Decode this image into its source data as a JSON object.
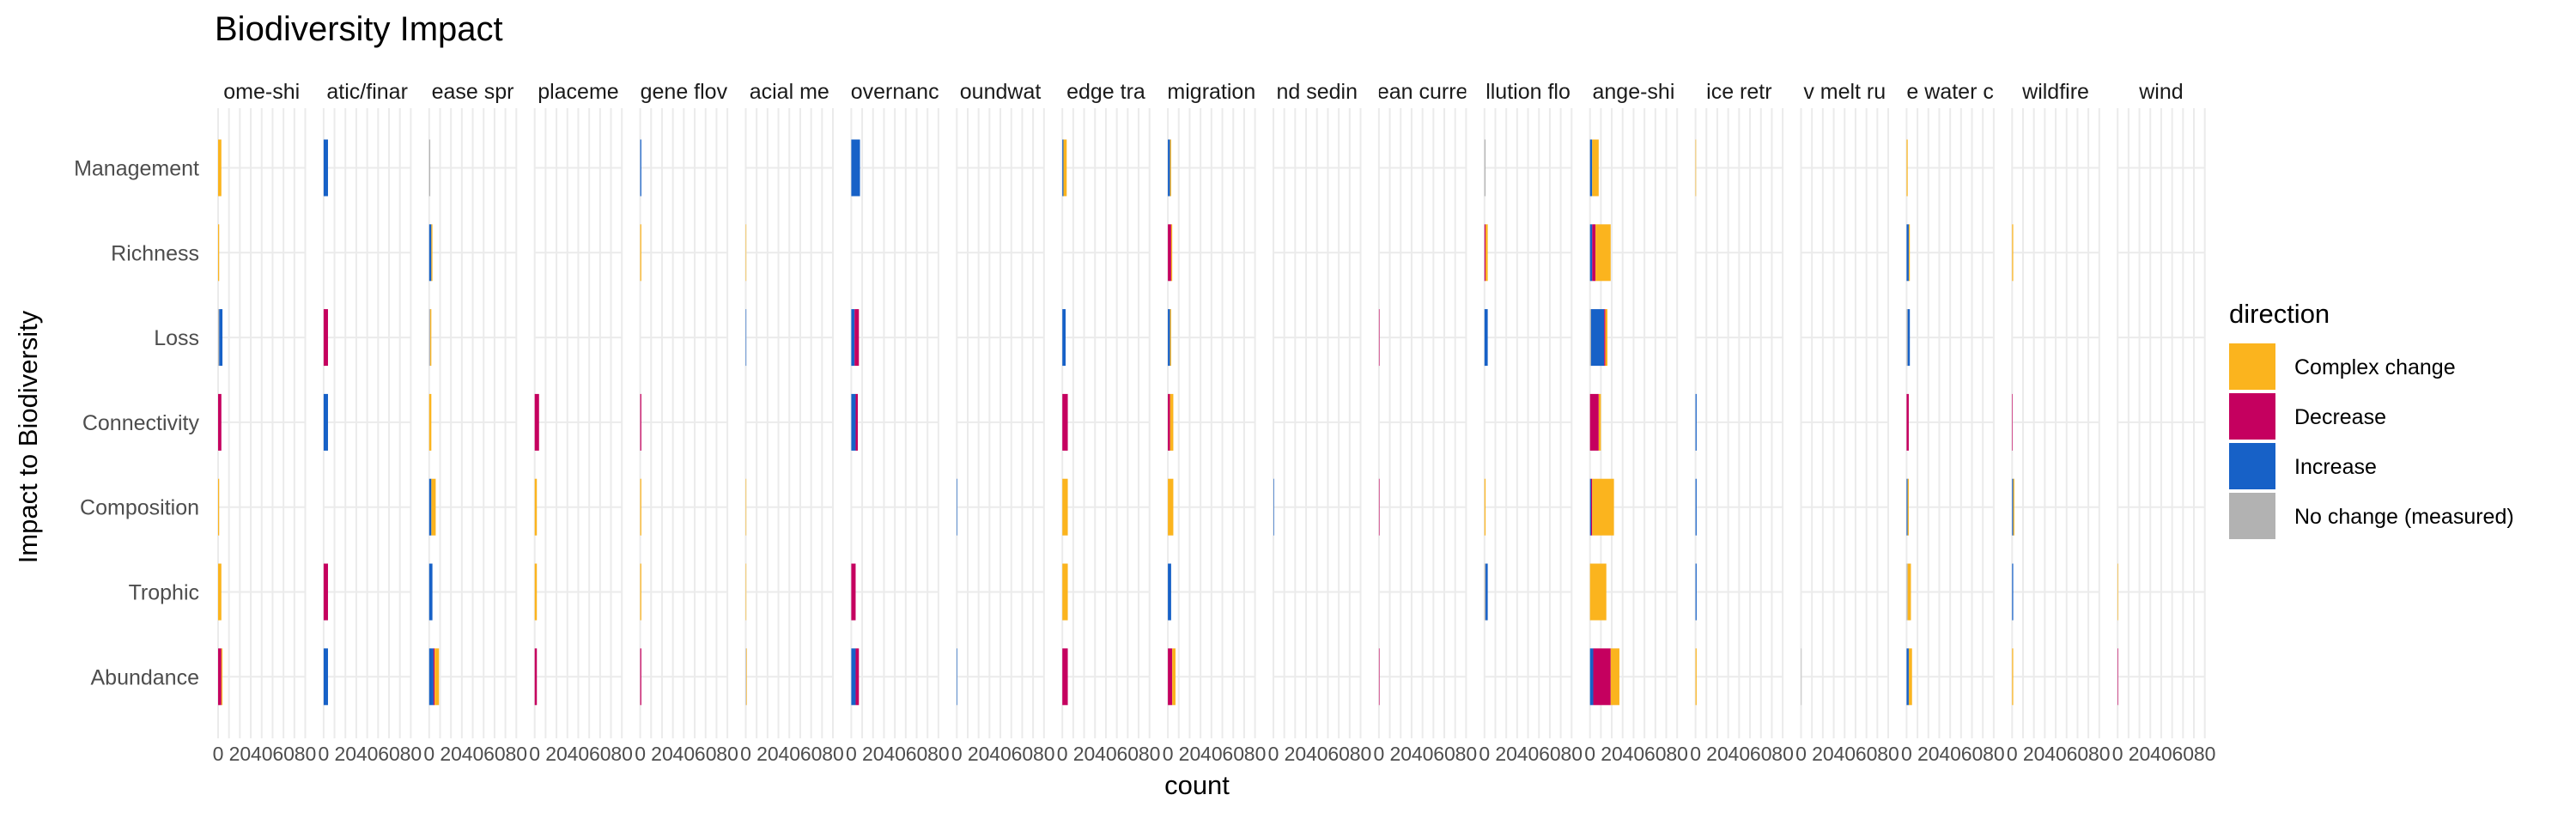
{
  "chart_data": {
    "type": "bar",
    "orientation": "horizontal",
    "stacked": true,
    "title": "Biodiversity Impact",
    "xlabel": "count",
    "ylabel": "Impact to Biodiversity",
    "xlim": [
      0,
      80
    ],
    "x_ticks": [
      0,
      20,
      40,
      60,
      80
    ],
    "x_tick_labels": [
      "0",
      "20",
      "40",
      "60",
      "80"
    ],
    "categories": [
      "Management",
      "Richness",
      "Loss",
      "Connectivity",
      "Composition",
      "Trophic",
      "Abundance"
    ],
    "legend": {
      "title": "direction",
      "position": "right",
      "entries": [
        {
          "label": "Complex change",
          "color": "#FBB41E"
        },
        {
          "label": "Decrease",
          "color": "#C5005F"
        },
        {
          "label": "Increase",
          "color": "#1761C7"
        },
        {
          "label": "No change (measured)",
          "color": "#B2B2B2"
        }
      ]
    },
    "stack_order": [
      "No change (measured)",
      "Increase",
      "Decrease",
      "Complex change"
    ],
    "panels": [
      {
        "label": "ome-shi",
        "values": {
          "Management": {
            "Complex change": 3
          },
          "Richness": {
            "Complex change": 1
          },
          "Loss": {
            "Increase": 3,
            "No change (measured)": 1
          },
          "Connectivity": {
            "Decrease": 3
          },
          "Composition": {
            "Complex change": 1
          },
          "Trophic": {
            "Complex change": 3
          },
          "Abundance": {
            "Decrease": 3,
            "Complex change": 1
          }
        }
      },
      {
        "label": "atic/finar",
        "values": {
          "Management": {
            "Increase": 4
          },
          "Loss": {
            "Decrease": 4
          },
          "Connectivity": {
            "Increase": 4
          },
          "Trophic": {
            "Decrease": 4
          },
          "Abundance": {
            "Increase": 4
          }
        }
      },
      {
        "label": "ease spr",
        "values": {
          "Management": {
            "No change (measured)": 1
          },
          "Richness": {
            "Increase": 2,
            "Complex change": 1
          },
          "Loss": {
            "No change (measured)": 1,
            "Complex change": 1
          },
          "Connectivity": {
            "Complex change": 2
          },
          "Composition": {
            "Increase": 2,
            "Complex change": 4
          },
          "Trophic": {
            "Increase": 3
          },
          "Abundance": {
            "Increase": 4,
            "Decrease": 1,
            "Complex change": 4
          }
        }
      },
      {
        "label": "placeme",
        "values": {
          "Connectivity": {
            "Decrease": 4
          },
          "Composition": {
            "Complex change": 2
          },
          "Trophic": {
            "Complex change": 2
          },
          "Abundance": {
            "Decrease": 2
          }
        }
      },
      {
        "label": "gene flov",
        "values": {
          "Management": {
            "Increase": 1
          },
          "Richness": {
            "Complex change": 1
          },
          "Connectivity": {
            "Decrease": 1
          },
          "Composition": {
            "Complex change": 1
          },
          "Trophic": {
            "Complex change": 1
          },
          "Abundance": {
            "Decrease": 1
          }
        }
      },
      {
        "label": "acial me",
        "values": {
          "Richness": {
            "Complex change": 0.5
          },
          "Loss": {
            "Increase": 0.5
          },
          "Composition": {
            "Complex change": 0.5
          },
          "Trophic": {
            "Complex change": 0.5
          },
          "Abundance": {
            "No change (measured)": 0.5,
            "Complex change": 0.5
          }
        }
      },
      {
        "label": "overnanc",
        "values": {
          "Management": {
            "Increase": 8
          },
          "Loss": {
            "Increase": 3,
            "Decrease": 4
          },
          "Connectivity": {
            "Increase": 4,
            "Decrease": 2
          },
          "Trophic": {
            "Decrease": 4
          },
          "Abundance": {
            "Increase": 4,
            "Decrease": 3
          }
        }
      },
      {
        "label": "oundwat",
        "values": {
          "Composition": {
            "Increase": 0.5
          },
          "Abundance": {
            "Increase": 0.5
          }
        }
      },
      {
        "label": "edge tra",
        "values": {
          "Management": {
            "Increase": 1,
            "Complex change": 3
          },
          "Loss": {
            "Increase": 3
          },
          "Connectivity": {
            "Decrease": 5
          },
          "Composition": {
            "Complex change": 5
          },
          "Trophic": {
            "Complex change": 5
          },
          "Abundance": {
            "Decrease": 5
          }
        }
      },
      {
        "label": "migration",
        "values": {
          "Management": {
            "Increase": 2,
            "Complex change": 1
          },
          "Richness": {
            "Decrease": 3,
            "Complex change": 1
          },
          "Loss": {
            "Increase": 2,
            "Complex change": 1
          },
          "Connectivity": {
            "Decrease": 2,
            "Complex change": 3
          },
          "Composition": {
            "Complex change": 5
          },
          "Trophic": {
            "Increase": 3
          },
          "Abundance": {
            "Decrease": 4,
            "Complex change": 3
          }
        }
      },
      {
        "label": "nd sedin",
        "values": {
          "Composition": {
            "Increase": 0.5
          }
        }
      },
      {
        "label": "ean curre",
        "values": {
          "Loss": {
            "Decrease": 0.5
          },
          "Composition": {
            "Decrease": 0.5
          },
          "Abundance": {
            "Decrease": 0.5
          }
        }
      },
      {
        "label": "llution flo",
        "values": {
          "Management": {
            "No change (measured)": 1
          },
          "Richness": {
            "Decrease": 1,
            "Complex change": 2
          },
          "Loss": {
            "Increase": 3
          },
          "Composition": {
            "Complex change": 1
          },
          "Trophic": {
            "No change (measured)": 1,
            "Increase": 2
          }
        }
      },
      {
        "label": "ange-shi",
        "values": {
          "Management": {
            "Increase": 2,
            "Complex change": 6
          },
          "Richness": {
            "Increase": 2,
            "Decrease": 3,
            "Complex change": 14
          },
          "Loss": {
            "No change (measured)": 1,
            "Increase": 12,
            "Decrease": 1,
            "Complex change": 2
          },
          "Connectivity": {
            "Decrease": 8,
            "Complex change": 2
          },
          "Composition": {
            "Increase": 1,
            "Decrease": 1,
            "Complex change": 20
          },
          "Trophic": {
            "Complex change": 15
          },
          "Abundance": {
            "Increase": 3,
            "Decrease": 16,
            "Complex change": 8
          }
        }
      },
      {
        "label": "ice retr",
        "values": {
          "Management": {
            "Complex change": 0.5
          },
          "Connectivity": {
            "Increase": 1
          },
          "Composition": {
            "Increase": 1
          },
          "Trophic": {
            "Increase": 1
          },
          "Abundance": {
            "Complex change": 1
          }
        }
      },
      {
        "label": "v melt ru",
        "values": {
          "Abundance": {
            "No change (measured)": 0.5
          }
        }
      },
      {
        "label": "e water c",
        "values": {
          "Management": {
            "Complex change": 1
          },
          "Richness": {
            "Increase": 2,
            "Complex change": 1
          },
          "Loss": {
            "No change (measured)": 1,
            "Increase": 2
          },
          "Connectivity": {
            "Decrease": 2
          },
          "Composition": {
            "Increase": 1,
            "Complex change": 1
          },
          "Trophic": {
            "No change (measured)": 1,
            "Complex change": 3
          },
          "Abundance": {
            "Increase": 2,
            "Complex change": 3
          }
        }
      },
      {
        "label": "wildfire",
        "values": {
          "Richness": {
            "Complex change": 1
          },
          "Connectivity": {
            "Decrease": 0.5
          },
          "Composition": {
            "Increase": 1,
            "Complex change": 1
          },
          "Trophic": {
            "Increase": 1
          },
          "Abundance": {
            "Complex change": 1
          }
        }
      },
      {
        "label": "wind",
        "values": {
          "Trophic": {
            "Complex change": 0.5
          },
          "Abundance": {
            "Decrease": 0.5
          }
        }
      }
    ]
  }
}
